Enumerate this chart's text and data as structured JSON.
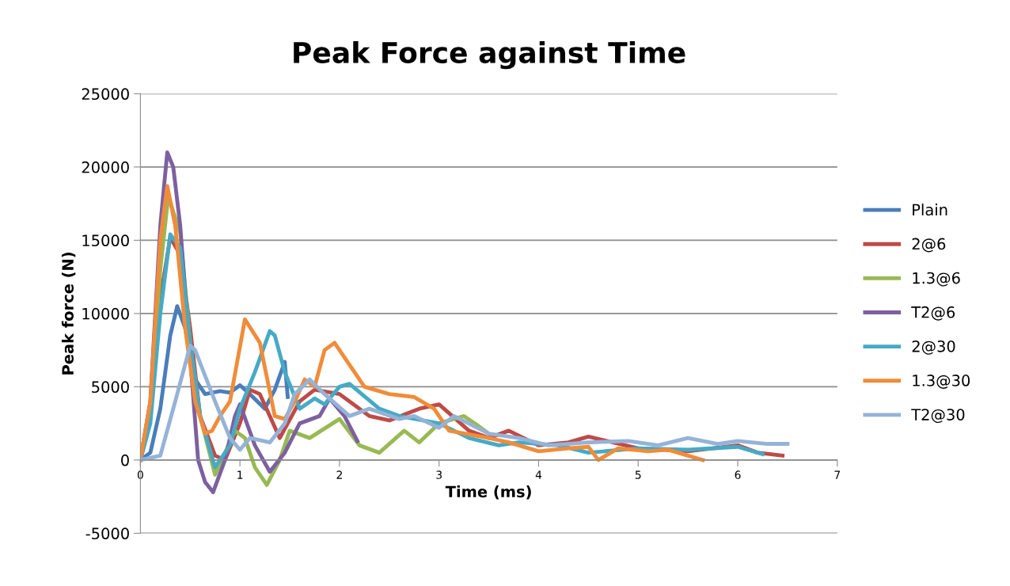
{
  "chart_data": {
    "type": "line",
    "title": "Peak Force against Time",
    "xlabel": "Time (ms)",
    "ylabel": "Peak force (N)",
    "xlim": [
      0,
      7
    ],
    "xticks": [
      0,
      1,
      2,
      3,
      4,
      5,
      6,
      7
    ],
    "ylim": [
      -5000,
      25000
    ],
    "yticks": [
      -5000,
      0,
      5000,
      10000,
      15000,
      20000,
      25000
    ],
    "grid": "y",
    "legend": "right",
    "marker": "none",
    "line_style": "solid",
    "series": [
      {
        "name": "Plain",
        "color": "#4a7ebb",
        "x": [
          0,
          0.1,
          0.2,
          0.3,
          0.37,
          0.45,
          0.55,
          0.65,
          0.8,
          0.9,
          1.0,
          1.1,
          1.25,
          1.35,
          1.45,
          1.48
        ],
        "values": [
          0,
          500,
          3500,
          8500,
          10500,
          9000,
          5500,
          4500,
          4700,
          4600,
          5100,
          4500,
          3500,
          4800,
          6700,
          4300
        ]
      },
      {
        "name": "2@6",
        "color": "#be4b48",
        "x": [
          0,
          0.1,
          0.2,
          0.3,
          0.4,
          0.5,
          0.6,
          0.75,
          0.85,
          1.0,
          1.1,
          1.2,
          1.4,
          1.6,
          1.75,
          2.0,
          2.3,
          2.5,
          2.8,
          3.0,
          3.3,
          3.5,
          3.7,
          4.0,
          4.3,
          4.5,
          5.0,
          5.5,
          6.0,
          6.2,
          6.45
        ],
        "values": [
          0,
          3000,
          11000,
          15200,
          14000,
          9000,
          3000,
          300,
          0,
          2500,
          4800,
          4500,
          1500,
          4000,
          4800,
          4500,
          3000,
          2700,
          3500,
          3800,
          2000,
          1500,
          2000,
          1000,
          1200,
          1600,
          800,
          600,
          1000,
          500,
          300
        ]
      },
      {
        "name": "1.3@6",
        "color": "#98b954",
        "x": [
          0,
          0.1,
          0.2,
          0.28,
          0.4,
          0.5,
          0.6,
          0.75,
          0.85,
          0.95,
          1.05,
          1.15,
          1.27,
          1.4,
          1.5,
          1.7,
          2.0,
          2.2,
          2.4,
          2.65,
          2.8,
          3.0,
          3.25,
          3.4,
          3.48
        ],
        "values": [
          0,
          3500,
          13000,
          18000,
          15500,
          8000,
          3000,
          -1000,
          500,
          2000,
          1500,
          -500,
          -1700,
          0,
          2000,
          1500,
          2800,
          1000,
          500,
          2000,
          1200,
          2500,
          3000,
          2300,
          1900
        ]
      },
      {
        "name": "T2@6",
        "color": "#7d60a0",
        "x": [
          0,
          0.1,
          0.2,
          0.27,
          0.33,
          0.4,
          0.5,
          0.58,
          0.65,
          0.73,
          0.85,
          0.95,
          1.0,
          1.15,
          1.3,
          1.45,
          1.6,
          1.8,
          1.9,
          2.05,
          2.18
        ],
        "values": [
          0,
          4000,
          16000,
          21000,
          20000,
          16000,
          7000,
          0,
          -1500,
          -2200,
          0,
          3000,
          3800,
          1000,
          -800,
          500,
          2500,
          3000,
          4200,
          3000,
          1300
        ]
      },
      {
        "name": "2@30",
        "color": "#46aac5",
        "x": [
          0,
          0.1,
          0.2,
          0.3,
          0.4,
          0.5,
          0.6,
          0.75,
          0.9,
          1.0,
          1.15,
          1.3,
          1.35,
          1.45,
          1.6,
          1.75,
          1.85,
          2.0,
          2.1,
          2.4,
          2.6,
          3.0,
          3.3,
          3.6,
          3.8,
          4.2,
          4.5,
          5.0,
          5.5,
          6.0,
          6.25
        ],
        "values": [
          0,
          2500,
          10000,
          15400,
          14500,
          8000,
          3000,
          -500,
          1000,
          3500,
          6000,
          8800,
          8500,
          6000,
          3500,
          4200,
          3800,
          5000,
          5200,
          3500,
          3000,
          2500,
          1500,
          1000,
          1200,
          1000,
          500,
          800,
          700,
          900,
          400
        ]
      },
      {
        "name": "1.3@30",
        "color": "#f08c3a",
        "x": [
          0,
          0.1,
          0.2,
          0.27,
          0.35,
          0.45,
          0.55,
          0.65,
          0.72,
          0.8,
          0.9,
          1.05,
          1.2,
          1.35,
          1.45,
          1.55,
          1.65,
          1.75,
          1.85,
          1.95,
          2.05,
          2.25,
          2.5,
          2.75,
          2.95,
          3.1,
          3.5,
          3.7,
          4.0,
          4.3,
          4.5,
          4.6,
          4.8,
          5.1,
          5.3,
          5.6,
          5.65
        ],
        "values": [
          0,
          4000,
          15000,
          18700,
          16000,
          9000,
          4000,
          1800,
          2000,
          3000,
          4000,
          9600,
          8000,
          3000,
          2800,
          4000,
          5500,
          5000,
          7500,
          8000,
          7000,
          5000,
          4500,
          4300,
          3500,
          2000,
          1500,
          1200,
          600,
          800,
          900,
          0,
          800,
          600,
          700,
          100,
          0
        ]
      },
      {
        "name": "T2@30",
        "color": "#95b3d7",
        "x": [
          0,
          0.2,
          0.35,
          0.5,
          0.55,
          0.75,
          0.9,
          1.0,
          1.1,
          1.3,
          1.45,
          1.55,
          1.7,
          1.85,
          2.1,
          2.3,
          2.6,
          2.75,
          3.0,
          3.15,
          3.5,
          3.8,
          4.1,
          4.5,
          4.9,
          5.2,
          5.5,
          5.8,
          6.0,
          6.3,
          6.5
        ],
        "values": [
          0,
          300,
          4000,
          7800,
          7500,
          4000,
          1500,
          700,
          1500,
          1200,
          2500,
          4500,
          5500,
          4500,
          3000,
          3500,
          2800,
          3000,
          2200,
          3000,
          1800,
          1500,
          1000,
          1200,
          1300,
          1000,
          1500,
          1100,
          1300,
          1100,
          1100
        ]
      }
    ]
  }
}
